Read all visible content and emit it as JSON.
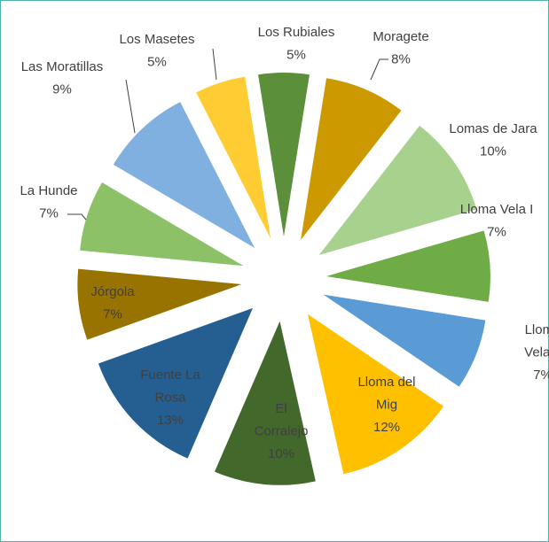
{
  "chart_data": {
    "type": "pie",
    "categories": [
      "Los Rubiales",
      "Moragete",
      "Lomas de Jara",
      "Lloma Vela I",
      "Lloma Vela II",
      "Lloma del Mig",
      "El Corralejo",
      "Fuente La Rosa",
      "Jórgola",
      "La Hunde",
      "Las Moratillas",
      "Los Masetes"
    ],
    "values": [
      5,
      8,
      10,
      7,
      7,
      12,
      10,
      13,
      7,
      7,
      9,
      5
    ],
    "value_labels": [
      "5%",
      "8%",
      "10%",
      "7%",
      "7%",
      "12%",
      "10%",
      "13%",
      "7%",
      "7%",
      "9%",
      "5%"
    ],
    "colors": [
      "#5b8f3a",
      "#cc9a00",
      "#a9d18e",
      "#6fac46",
      "#5b9bd5",
      "#ffc000",
      "#43682b",
      "#255e91",
      "#997300",
      "#8cc168",
      "#7fb0e0",
      "#ffcd33"
    ]
  }
}
